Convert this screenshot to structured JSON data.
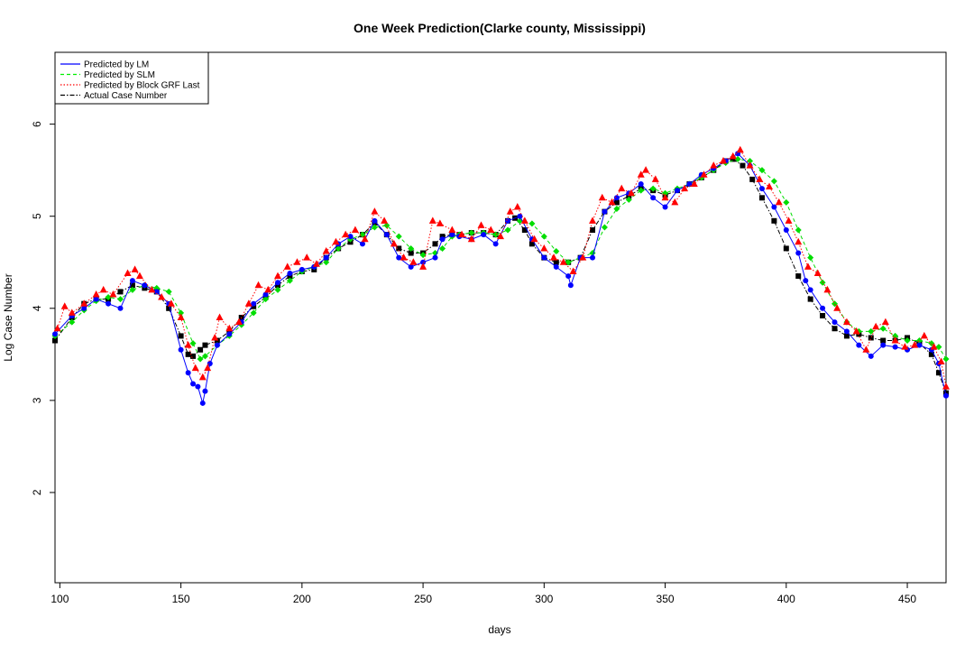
{
  "chart_data": {
    "type": "scatter",
    "title": "One Week Prediction(Clarke county, Mississippi)",
    "xlabel": "days",
    "ylabel": "Log Case Number",
    "xlim": [
      98,
      466
    ],
    "ylim": [
      1.02,
      6.78
    ],
    "xticks": [
      100,
      150,
      200,
      250,
      300,
      350,
      400,
      450
    ],
    "yticks": [
      2,
      3,
      4,
      5,
      6
    ],
    "grid": false,
    "legend_position": "top-left",
    "legend": [
      {
        "label": "Predicted by LM",
        "color": "#0000ff",
        "line": "solid"
      },
      {
        "label": "Predicted by SLM",
        "color": "#00ee00",
        "line": "dashed"
      },
      {
        "label": "Predicted by Block GRF Last",
        "color": "#ff0000",
        "line": "dotted"
      },
      {
        "label": "Actual Case Number",
        "color": "#000000",
        "line": "dashdot"
      }
    ],
    "series": [
      {
        "name": "Actual Case Number",
        "color": "#000000",
        "marker": "square",
        "x": [
          98,
          105,
          110,
          115,
          120,
          125,
          130,
          135,
          140,
          145,
          150,
          153,
          155,
          158,
          160,
          165,
          170,
          175,
          180,
          185,
          190,
          195,
          200,
          205,
          210,
          215,
          220,
          225,
          230,
          235,
          240,
          245,
          250,
          255,
          258,
          262,
          265,
          270,
          275,
          280,
          285,
          288,
          292,
          295,
          300,
          305,
          310,
          315,
          320,
          325,
          330,
          335,
          340,
          345,
          350,
          355,
          360,
          365,
          370,
          375,
          378,
          382,
          386,
          390,
          395,
          400,
          405,
          410,
          415,
          420,
          425,
          430,
          435,
          440,
          445,
          450,
          455,
          460,
          463,
          466
        ],
        "y": [
          3.65,
          3.9,
          4.05,
          4.1,
          4.1,
          4.18,
          4.25,
          4.22,
          4.18,
          4.0,
          3.7,
          3.5,
          3.48,
          3.55,
          3.6,
          3.65,
          3.75,
          3.9,
          4.02,
          4.12,
          4.25,
          4.35,
          4.4,
          4.42,
          4.55,
          4.65,
          4.72,
          4.8,
          4.93,
          4.8,
          4.65,
          4.6,
          4.6,
          4.7,
          4.78,
          4.8,
          4.8,
          4.82,
          4.82,
          4.8,
          4.95,
          4.98,
          4.85,
          4.7,
          4.55,
          4.5,
          4.5,
          4.55,
          4.85,
          5.05,
          5.15,
          5.22,
          5.3,
          5.28,
          5.23,
          5.28,
          5.35,
          5.42,
          5.5,
          5.6,
          5.62,
          5.55,
          5.4,
          5.2,
          4.95,
          4.65,
          4.35,
          4.1,
          3.92,
          3.78,
          3.7,
          3.72,
          3.68,
          3.65,
          3.65,
          3.68,
          3.62,
          3.5,
          3.3,
          3.08
        ]
      },
      {
        "name": "Predicted by SLM",
        "color": "#00dd00",
        "marker": "diamond",
        "x": [
          98,
          105,
          110,
          115,
          120,
          125,
          130,
          135,
          140,
          145,
          150,
          155,
          158,
          160,
          165,
          170,
          175,
          180,
          185,
          190,
          195,
          200,
          205,
          210,
          215,
          220,
          225,
          230,
          235,
          240,
          245,
          250,
          255,
          258,
          262,
          265,
          270,
          275,
          280,
          285,
          290,
          295,
          300,
          305,
          310,
          315,
          320,
          325,
          330,
          335,
          340,
          345,
          350,
          355,
          360,
          365,
          370,
          375,
          380,
          385,
          390,
          395,
          400,
          405,
          410,
          415,
          420,
          425,
          430,
          435,
          440,
          445,
          450,
          455,
          460,
          463,
          466
        ],
        "y": [
          3.7,
          3.85,
          3.98,
          4.08,
          4.12,
          4.1,
          4.2,
          4.25,
          4.22,
          4.18,
          3.95,
          3.62,
          3.45,
          3.48,
          3.6,
          3.7,
          3.82,
          3.95,
          4.1,
          4.2,
          4.3,
          4.4,
          4.45,
          4.5,
          4.65,
          4.75,
          4.8,
          4.88,
          4.9,
          4.78,
          4.65,
          4.58,
          4.6,
          4.65,
          4.78,
          4.8,
          4.82,
          4.82,
          4.8,
          4.85,
          4.95,
          4.92,
          4.78,
          4.62,
          4.5,
          4.55,
          4.6,
          4.88,
          5.08,
          5.18,
          5.28,
          5.3,
          5.25,
          5.3,
          5.35,
          5.42,
          5.5,
          5.58,
          5.62,
          5.6,
          5.5,
          5.38,
          5.15,
          4.85,
          4.55,
          4.28,
          4.05,
          3.85,
          3.75,
          3.75,
          3.78,
          3.7,
          3.65,
          3.65,
          3.62,
          3.58,
          3.45
        ]
      },
      {
        "name": "Predicted by LM",
        "color": "#0000ff",
        "marker": "circle",
        "x": [
          98,
          105,
          110,
          115,
          120,
          125,
          130,
          135,
          140,
          145,
          150,
          153,
          155,
          157,
          159,
          160,
          162,
          165,
          170,
          175,
          180,
          185,
          190,
          195,
          200,
          205,
          210,
          215,
          220,
          225,
          230,
          235,
          240,
          245,
          250,
          255,
          258,
          262,
          265,
          270,
          275,
          280,
          285,
          290,
          295,
          300,
          305,
          310,
          311,
          315,
          320,
          325,
          330,
          335,
          340,
          345,
          350,
          355,
          360,
          365,
          370,
          375,
          380,
          385,
          390,
          395,
          400,
          405,
          408,
          410,
          415,
          420,
          425,
          430,
          435,
          440,
          445,
          450,
          455,
          460,
          463,
          466
        ],
        "y": [
          3.72,
          3.92,
          4.0,
          4.1,
          4.05,
          4.0,
          4.3,
          4.25,
          4.18,
          4.05,
          3.55,
          3.3,
          3.18,
          3.15,
          2.97,
          3.1,
          3.4,
          3.6,
          3.72,
          3.85,
          4.05,
          4.15,
          4.28,
          4.38,
          4.42,
          4.45,
          4.55,
          4.7,
          4.78,
          4.7,
          4.95,
          4.8,
          4.55,
          4.45,
          4.5,
          4.55,
          4.75,
          4.8,
          4.78,
          4.75,
          4.8,
          4.7,
          4.95,
          5.0,
          4.75,
          4.55,
          4.45,
          4.35,
          4.25,
          4.55,
          4.55,
          5.05,
          5.2,
          5.25,
          5.35,
          5.2,
          5.1,
          5.28,
          5.35,
          5.45,
          5.52,
          5.6,
          5.68,
          5.55,
          5.3,
          5.1,
          4.85,
          4.6,
          4.3,
          4.2,
          4.0,
          3.85,
          3.75,
          3.6,
          3.48,
          3.6,
          3.58,
          3.55,
          3.6,
          3.55,
          3.4,
          3.05
        ]
      },
      {
        "name": "Predicted by Block GRF Last",
        "color": "#ff0000",
        "marker": "triangle",
        "x": [
          99,
          102,
          105,
          110,
          115,
          118,
          122,
          128,
          131,
          133,
          138,
          142,
          146,
          150,
          153,
          156,
          159,
          161,
          164,
          166,
          170,
          174,
          178,
          182,
          186,
          190,
          194,
          198,
          202,
          206,
          210,
          214,
          218,
          222,
          226,
          230,
          234,
          238,
          242,
          246,
          250,
          254,
          257,
          262,
          266,
          270,
          274,
          278,
          282,
          286,
          289,
          292,
          296,
          300,
          304,
          308,
          312,
          316,
          320,
          324,
          328,
          332,
          336,
          340,
          342,
          346,
          350,
          354,
          358,
          362,
          366,
          370,
          374,
          378,
          381,
          385,
          389,
          393,
          397,
          401,
          405,
          409,
          413,
          417,
          421,
          425,
          429,
          433,
          437,
          441,
          445,
          449,
          453,
          457,
          461,
          464,
          466
        ],
        "y": [
          3.78,
          4.02,
          3.95,
          4.05,
          4.15,
          4.2,
          4.15,
          4.38,
          4.42,
          4.35,
          4.2,
          4.12,
          4.05,
          3.9,
          3.6,
          3.35,
          3.25,
          3.35,
          3.68,
          3.9,
          3.78,
          3.85,
          4.05,
          4.25,
          4.2,
          4.35,
          4.45,
          4.5,
          4.55,
          4.48,
          4.62,
          4.72,
          4.8,
          4.85,
          4.75,
          5.05,
          4.95,
          4.7,
          4.55,
          4.5,
          4.45,
          4.95,
          4.92,
          4.85,
          4.8,
          4.75,
          4.9,
          4.85,
          4.78,
          5.05,
          5.1,
          4.95,
          4.75,
          4.65,
          4.55,
          4.5,
          4.4,
          4.55,
          4.95,
          5.2,
          5.15,
          5.3,
          5.25,
          5.45,
          5.5,
          5.4,
          5.2,
          5.15,
          5.3,
          5.35,
          5.45,
          5.55,
          5.6,
          5.65,
          5.72,
          5.55,
          5.4,
          5.32,
          5.15,
          4.95,
          4.72,
          4.45,
          4.38,
          4.2,
          4.0,
          3.85,
          3.75,
          3.55,
          3.8,
          3.85,
          3.65,
          3.58,
          3.6,
          3.7,
          3.58,
          3.42,
          3.15
        ]
      }
    ]
  }
}
